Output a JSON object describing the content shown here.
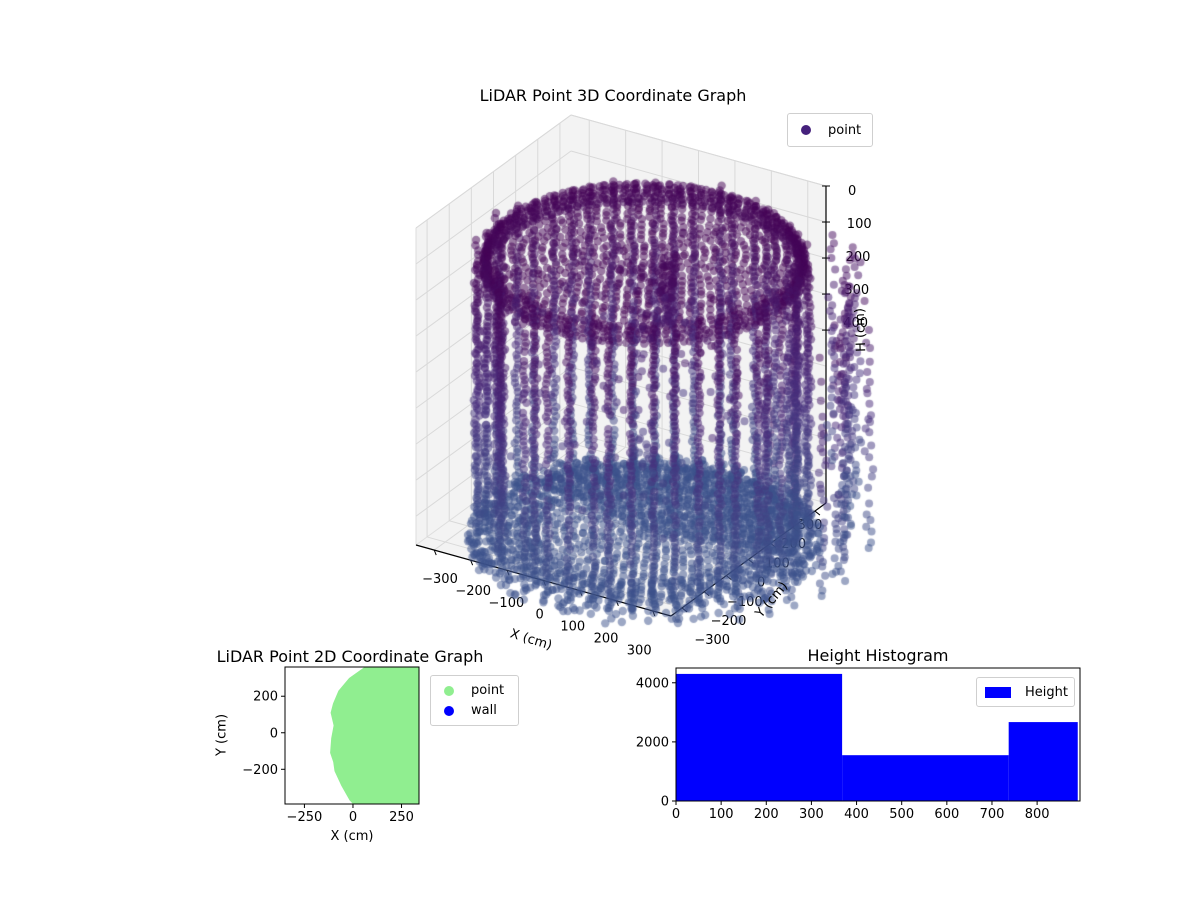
{
  "chart_data": [
    {
      "id": "plot3d",
      "type": "scatter3d",
      "title": "LiDAR Point 3D Coordinate Graph",
      "xlabel": "X (cm)",
      "ylabel": "Y (cm)",
      "zlabel": "H (cm)",
      "xticks": [
        -300,
        -200,
        -100,
        0,
        100,
        200,
        300
      ],
      "yticks": [
        300,
        200,
        100,
        0,
        -100,
        -200,
        -300
      ],
      "zticks": [
        0,
        100,
        200,
        300,
        400
      ],
      "xlim": [
        -350,
        350
      ],
      "ylim": [
        -350,
        350
      ],
      "hlim": [
        0,
        880
      ],
      "legend": [
        {
          "label": "point",
          "color": "#45217c"
        }
      ],
      "cloud": {
        "shape": "cylinder-room-scan",
        "radius_cm": 380,
        "ceiling_h_cm": 40,
        "floor_h_cm": 820,
        "wall_columns": 46,
        "colormap": [
          "#440154",
          "#472a7a",
          "#3b528b"
        ],
        "alpha": 0.5
      }
    },
    {
      "id": "plot2d",
      "type": "scatter",
      "title": "LiDAR Point 2D Coordinate Graph",
      "xlabel": "X (cm)",
      "ylabel": "Y (cm)",
      "xticks": [
        -250,
        0,
        250
      ],
      "yticks": [
        200,
        0,
        -200
      ],
      "xlim": [
        -350,
        340
      ],
      "ylim": [
        -390,
        360
      ],
      "legend": [
        {
          "label": "point",
          "color": "#90ee90"
        },
        {
          "label": "wall",
          "color": "#0000ff"
        }
      ],
      "region": {
        "color": "#90ee90",
        "outline": [
          [
            60,
            360
          ],
          [
            -20,
            300
          ],
          [
            -75,
            230
          ],
          [
            -103,
            160
          ],
          [
            -115,
            110
          ],
          [
            -100,
            40
          ],
          [
            -112,
            -30
          ],
          [
            -118,
            -110
          ],
          [
            -102,
            -160
          ],
          [
            -95,
            -210
          ],
          [
            -60,
            -290
          ],
          [
            -18,
            -370
          ],
          [
            0,
            -390
          ],
          [
            340,
            -390
          ],
          [
            340,
            360
          ]
        ]
      }
    },
    {
      "id": "histogram",
      "type": "histogram",
      "title": "Height Histogram",
      "xticks": [
        0,
        100,
        200,
        300,
        400,
        500,
        600,
        700,
        800
      ],
      "yticks": [
        0,
        2000,
        4000
      ],
      "xlim": [
        0,
        895
      ],
      "ylim": [
        0,
        4500
      ],
      "legend": [
        {
          "label": "Height",
          "color": "#0000ff"
        }
      ],
      "bars": [
        {
          "x0": 0,
          "x1": 368,
          "value": 4300
        },
        {
          "x0": 368,
          "x1": 737,
          "value": 1550
        },
        {
          "x0": 737,
          "x1": 890,
          "value": 2670
        }
      ]
    }
  ]
}
